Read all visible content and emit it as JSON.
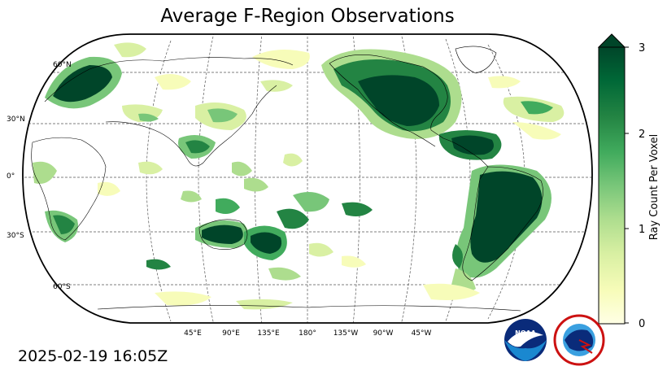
{
  "title": "Average F-Region Observations",
  "timestamp": "2025-02-19 16:05Z",
  "lat_labels": [
    "60°N",
    "30°N",
    "0°",
    "30°S",
    "60°S"
  ],
  "lon_labels": [
    "45°E",
    "90°E",
    "135°E",
    "180°",
    "135°W",
    "90°W",
    "45°W"
  ],
  "colorbar": {
    "label": "Ray Count Per Voxel",
    "ticks": [
      "3",
      "2",
      "1",
      "0"
    ],
    "range": [
      0,
      3
    ],
    "extend": "max",
    "colormap": "YlGn",
    "colors": [
      "#ffffe5",
      "#f7fcb9",
      "#d9f0a3",
      "#addd8e",
      "#78c679",
      "#41ab5d",
      "#238443",
      "#006837",
      "#004529"
    ]
  },
  "logos": {
    "noaa": "NOAA",
    "nws": "NATIONAL WEATHER SERVICE"
  }
}
